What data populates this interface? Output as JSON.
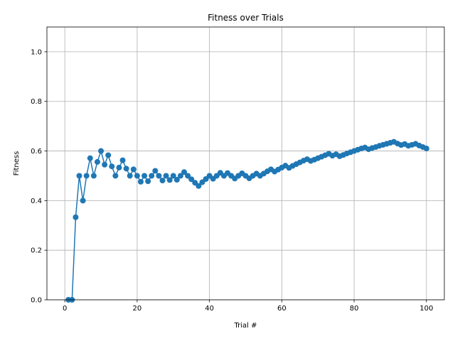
{
  "chart_data": {
    "type": "line",
    "title": "Fitness over Trials",
    "xlabel": "Trial #",
    "ylabel": "Fitness",
    "xlim": [
      -4.95,
      104.95
    ],
    "ylim": [
      0.0,
      1.1
    ],
    "xticks": [
      0,
      20,
      40,
      60,
      80,
      100
    ],
    "yticks": [
      0.0,
      0.2,
      0.4,
      0.6,
      0.8,
      1.0
    ],
    "xtick_labels": [
      "0",
      "20",
      "40",
      "60",
      "80",
      "100"
    ],
    "ytick_labels": [
      "0.0",
      "0.2",
      "0.4",
      "0.6",
      "0.8",
      "1.0"
    ],
    "grid": true,
    "marker": "circle",
    "color": "#1f77b4",
    "series": [
      {
        "x": [
          1,
          2,
          3,
          4,
          5,
          6,
          7,
          8,
          9,
          10,
          11,
          12,
          13,
          14,
          15,
          16,
          17,
          18,
          19,
          20,
          21,
          22,
          23,
          24,
          25,
          26,
          27,
          28,
          29,
          30,
          31,
          32,
          33,
          34,
          35,
          36,
          37,
          38,
          39,
          40,
          41,
          42,
          43,
          44,
          45,
          46,
          47,
          48,
          49,
          50,
          51,
          52,
          53,
          54,
          55,
          56,
          57,
          58,
          59,
          60,
          61,
          62,
          63,
          64,
          65,
          66,
          67,
          68,
          69,
          70,
          71,
          72,
          73,
          74,
          75,
          76,
          77,
          78,
          79,
          80,
          81,
          82,
          83,
          84,
          85,
          86,
          87,
          88,
          89,
          90,
          91,
          92,
          93,
          94,
          95,
          96,
          97,
          98,
          99,
          100
        ],
        "y": [
          0.0,
          0.0,
          0.333,
          0.5,
          0.4,
          0.5,
          0.571,
          0.5,
          0.556,
          0.6,
          0.545,
          0.583,
          0.538,
          0.5,
          0.533,
          0.5625,
          0.529,
          0.5,
          0.526,
          0.5,
          0.476,
          0.5,
          0.478,
          0.5,
          0.52,
          0.5,
          0.481,
          0.5,
          0.483,
          0.5,
          0.484,
          0.5,
          0.515,
          0.5,
          0.486,
          0.472,
          0.459,
          0.474,
          0.487,
          0.5,
          0.488,
          0.5,
          0.512,
          0.5,
          0.511,
          0.5,
          0.489,
          0.5,
          0.51,
          0.5,
          0.49,
          0.5,
          0.509,
          0.5,
          0.509,
          0.518,
          0.526,
          0.517,
          0.525,
          0.533,
          0.541,
          0.532,
          0.54,
          0.547,
          0.554,
          0.561,
          0.567,
          0.56,
          0.565,
          0.571,
          0.577,
          0.583,
          0.589,
          0.581,
          0.587,
          0.579,
          0.584,
          0.59,
          0.595,
          0.6,
          0.605,
          0.61,
          0.614,
          0.607,
          0.612,
          0.616,
          0.621,
          0.625,
          0.629,
          0.633,
          0.637,
          0.63,
          0.624,
          0.628,
          0.621,
          0.625,
          0.629,
          0.622,
          0.616,
          0.61
        ]
      }
    ]
  }
}
